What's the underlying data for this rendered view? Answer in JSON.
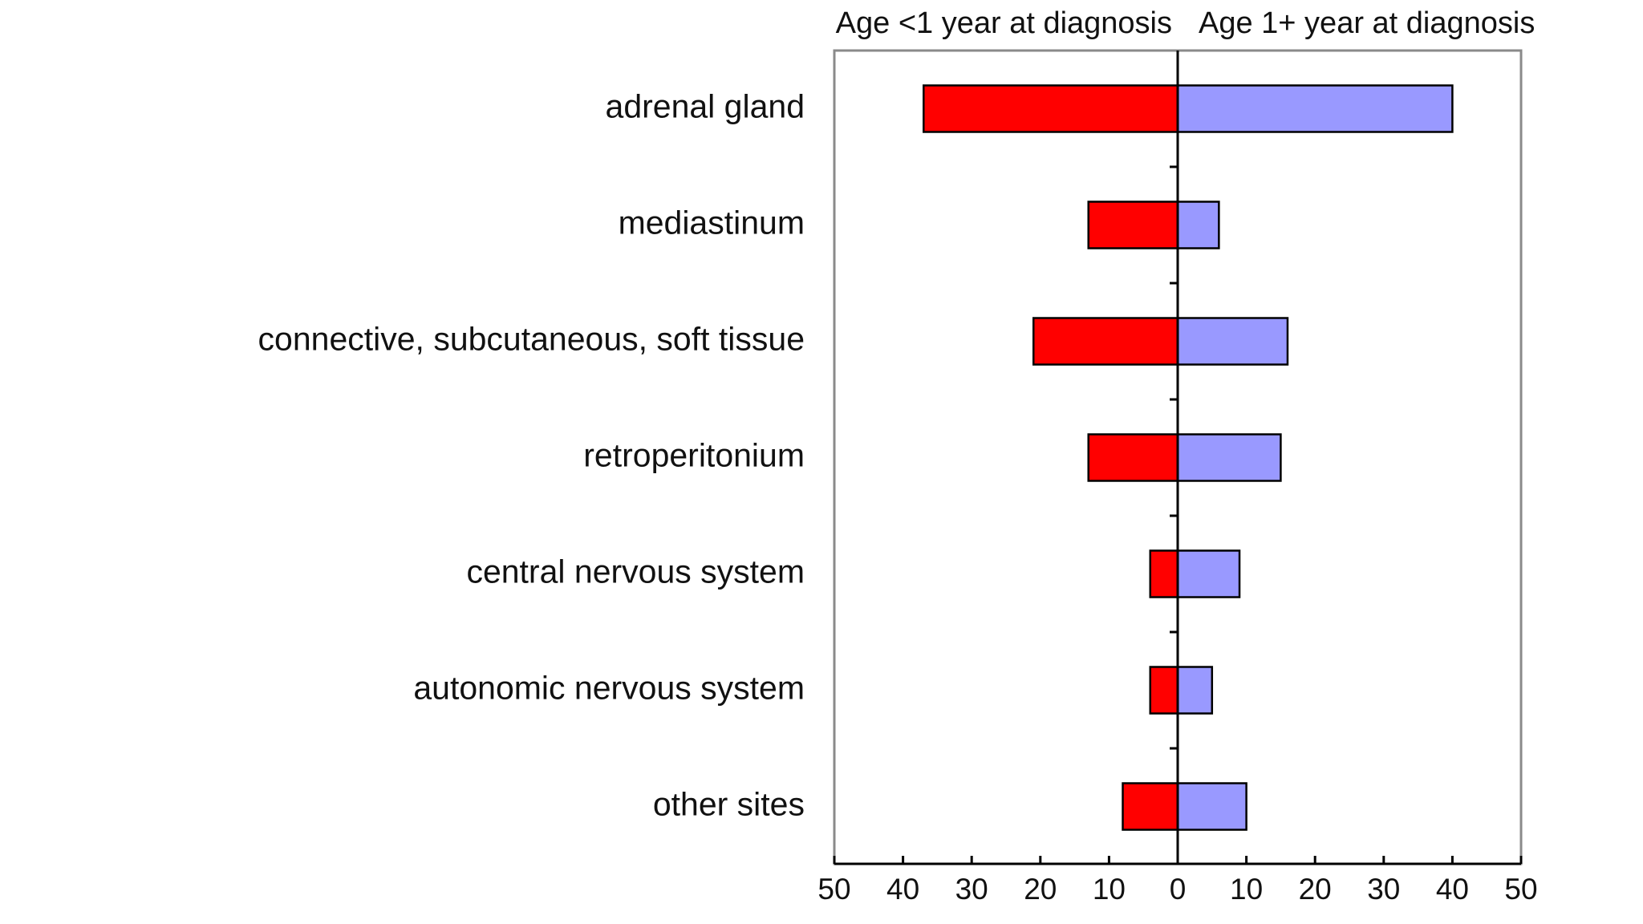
{
  "chart_data": {
    "type": "bar",
    "orientation": "horizontal-diverging",
    "title": "",
    "xlabel": "",
    "ylabel": "",
    "categories": [
      "adrenal gland",
      "mediastinum",
      "connective, subcutaneous, soft tissue",
      "retroperitonium",
      "central nervous system",
      "autonomic nervous system",
      "other sites"
    ],
    "series": [
      {
        "name": "Age <1 year at diagnosis",
        "side": "left",
        "color": "#ff0000",
        "values": [
          37,
          13,
          21,
          13,
          4,
          4,
          8
        ]
      },
      {
        "name": "Age 1+ year at diagnosis",
        "side": "right",
        "color": "#9999ff",
        "values": [
          40,
          6,
          16,
          15,
          9,
          5,
          10
        ]
      }
    ],
    "xlim": [
      -50,
      50
    ],
    "x_tick_labels": [
      "50",
      "40",
      "30",
      "20",
      "10",
      "0",
      "10",
      "20",
      "30",
      "40",
      "50"
    ],
    "grid": false
  }
}
